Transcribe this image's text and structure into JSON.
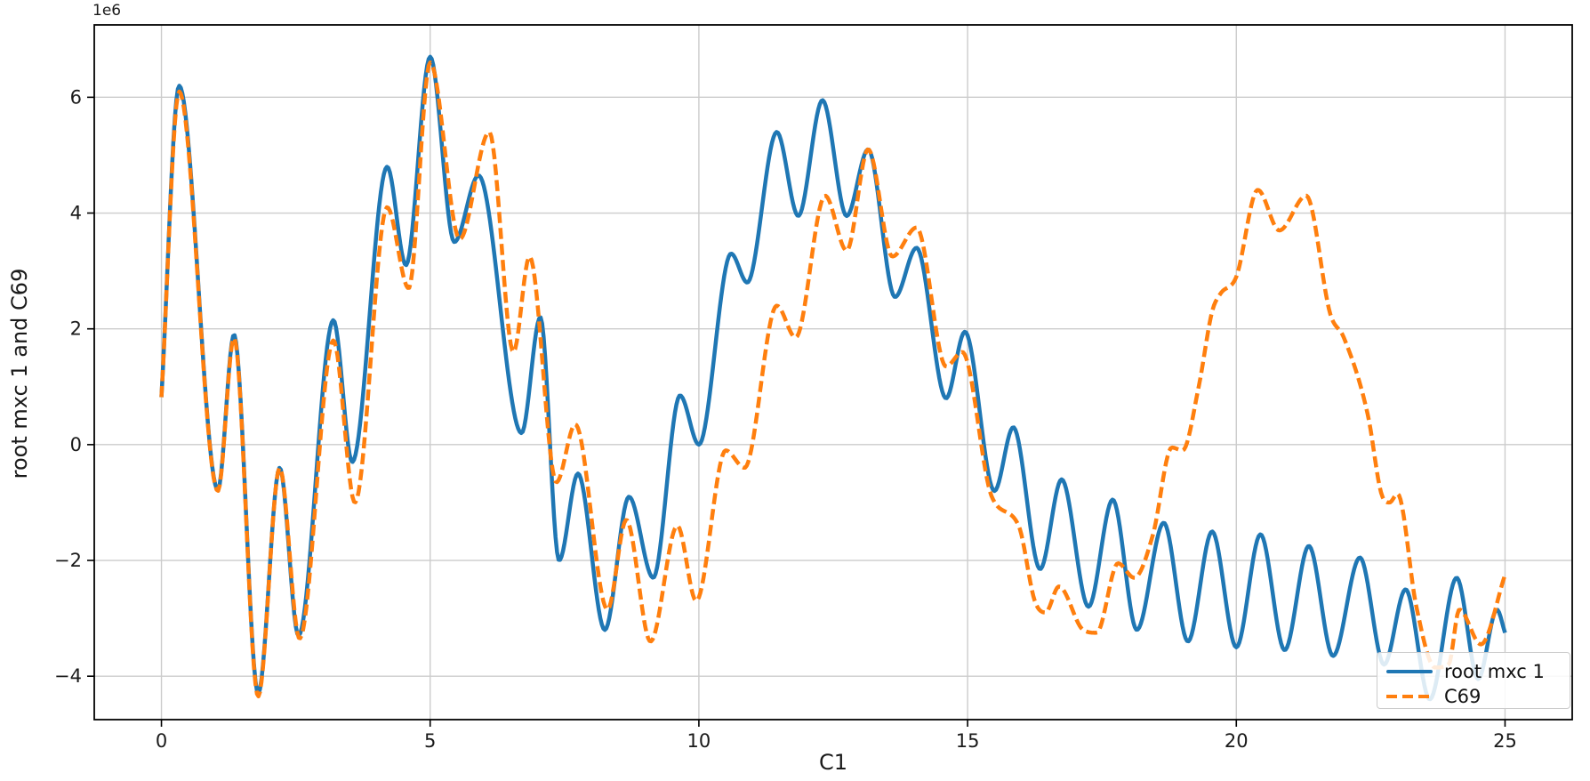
{
  "figure": {
    "background": "#ffffff",
    "xlabel": "C1",
    "ylabel": "root mxc 1 and C69",
    "offset_text": "1e6",
    "legend": {
      "entries": [
        {
          "label": "root mxc 1",
          "color": "#1f77b4",
          "style": "solid"
        },
        {
          "label": "C69",
          "color": "#ff7f0e",
          "style": "dashed"
        }
      ]
    }
  },
  "chart_data": {
    "type": "line",
    "title": "",
    "xlabel": "C1",
    "ylabel": "root mxc 1 and C69",
    "y_scale_factor": "1e6",
    "xlim": [
      -1.25,
      26.25
    ],
    "ylim": [
      -4.75,
      7.25
    ],
    "x_ticks": [
      0,
      5,
      10,
      15,
      20,
      25
    ],
    "x_tick_labels": [
      "0",
      "5",
      "10",
      "15",
      "20",
      "25"
    ],
    "y_ticks": [
      -4,
      -2,
      0,
      2,
      4,
      6
    ],
    "y_tick_labels": [
      "−4",
      "−2",
      "0",
      "2",
      "4",
      "6"
    ],
    "grid": true,
    "grid_color": "#cccccc",
    "axis_color": "#000000",
    "legend_position": "lower right",
    "series": [
      {
        "name": "root mxc 1",
        "color": "#1f77b4",
        "line_style": "solid",
        "line_width": 4.5,
        "points": [
          [
            0,
            0.82
          ],
          [
            0.33,
            6.2
          ],
          [
            1.05,
            -0.78
          ],
          [
            1.35,
            1.9
          ],
          [
            1.8,
            -4.3
          ],
          [
            2.2,
            -0.4
          ],
          [
            2.55,
            -3.3
          ],
          [
            3.2,
            2.15
          ],
          [
            3.55,
            -0.3
          ],
          [
            4.2,
            4.8
          ],
          [
            4.55,
            3.1
          ],
          [
            5.0,
            6.7
          ],
          [
            5.45,
            3.5
          ],
          [
            5.9,
            4.65
          ],
          [
            6.7,
            0.2
          ],
          [
            7.05,
            2.2
          ],
          [
            7.4,
            -2.0
          ],
          [
            7.75,
            -0.5
          ],
          [
            8.25,
            -3.2
          ],
          [
            8.7,
            -0.9
          ],
          [
            9.15,
            -2.3
          ],
          [
            9.65,
            0.85
          ],
          [
            10.0,
            0.0
          ],
          [
            10.6,
            3.3
          ],
          [
            10.9,
            2.8
          ],
          [
            11.45,
            5.4
          ],
          [
            11.85,
            3.95
          ],
          [
            12.3,
            5.95
          ],
          [
            12.75,
            3.95
          ],
          [
            13.15,
            5.1
          ],
          [
            13.65,
            2.55
          ],
          [
            14.05,
            3.4
          ],
          [
            14.6,
            0.8
          ],
          [
            14.95,
            1.95
          ],
          [
            15.5,
            -0.8
          ],
          [
            15.85,
            0.3
          ],
          [
            16.35,
            -2.15
          ],
          [
            16.75,
            -0.6
          ],
          [
            17.25,
            -2.8
          ],
          [
            17.7,
            -0.95
          ],
          [
            18.15,
            -3.2
          ],
          [
            18.65,
            -1.35
          ],
          [
            19.1,
            -3.4
          ],
          [
            19.55,
            -1.5
          ],
          [
            20.0,
            -3.5
          ],
          [
            20.45,
            -1.55
          ],
          [
            20.9,
            -3.55
          ],
          [
            21.35,
            -1.75
          ],
          [
            21.8,
            -3.65
          ],
          [
            22.3,
            -1.95
          ],
          [
            22.75,
            -3.8
          ],
          [
            23.15,
            -2.5
          ],
          [
            23.6,
            -4.4
          ],
          [
            24.1,
            -2.3
          ],
          [
            24.5,
            -4.05
          ],
          [
            24.85,
            -2.85
          ],
          [
            25,
            -3.25
          ]
        ]
      },
      {
        "name": "C69",
        "color": "#ff7f0e",
        "line_style": "dashed",
        "line_width": 4.5,
        "points": [
          [
            0,
            0.82
          ],
          [
            0.33,
            6.1
          ],
          [
            1.05,
            -0.8
          ],
          [
            1.35,
            1.85
          ],
          [
            1.8,
            -4.35
          ],
          [
            2.2,
            -0.4
          ],
          [
            2.57,
            -3.35
          ],
          [
            3.2,
            1.8
          ],
          [
            3.6,
            -1.0
          ],
          [
            4.2,
            4.1
          ],
          [
            4.6,
            2.7
          ],
          [
            5.0,
            6.6
          ],
          [
            5.55,
            3.55
          ],
          [
            6.1,
            5.4
          ],
          [
            6.55,
            1.6
          ],
          [
            6.85,
            3.25
          ],
          [
            7.35,
            -0.65
          ],
          [
            7.7,
            0.35
          ],
          [
            8.3,
            -2.85
          ],
          [
            8.65,
            -1.3
          ],
          [
            9.1,
            -3.4
          ],
          [
            9.6,
            -1.4
          ],
          [
            9.95,
            -2.7
          ],
          [
            10.5,
            -0.1
          ],
          [
            10.85,
            -0.4
          ],
          [
            11.45,
            2.4
          ],
          [
            11.8,
            1.85
          ],
          [
            12.35,
            4.3
          ],
          [
            12.75,
            3.35
          ],
          [
            13.15,
            5.1
          ],
          [
            13.6,
            3.25
          ],
          [
            14.05,
            3.75
          ],
          [
            14.6,
            1.35
          ],
          [
            14.9,
            1.6
          ],
          [
            15.45,
            -0.9
          ],
          [
            15.95,
            -1.4
          ],
          [
            16.25,
            -2.7
          ],
          [
            16.45,
            -2.9
          ],
          [
            16.7,
            -2.45
          ],
          [
            17.15,
            -3.2
          ],
          [
            17.4,
            -3.25
          ],
          [
            17.8,
            -2.05
          ],
          [
            18.1,
            -2.3
          ],
          [
            18.45,
            -1.55
          ],
          [
            18.8,
            -0.05
          ],
          [
            19.0,
            -0.1
          ],
          [
            19.3,
            1.0
          ],
          [
            19.55,
            2.3
          ],
          [
            19.7,
            2.6
          ],
          [
            20.0,
            2.9
          ],
          [
            20.4,
            4.4
          ],
          [
            20.8,
            3.7
          ],
          [
            21.3,
            4.3
          ],
          [
            21.75,
            2.25
          ],
          [
            22.0,
            1.85
          ],
          [
            22.45,
            0.5
          ],
          [
            22.7,
            -0.85
          ],
          [
            22.85,
            -1.0
          ],
          [
            23.0,
            -0.85
          ],
          [
            23.35,
            -2.8
          ],
          [
            23.7,
            -3.85
          ],
          [
            23.95,
            -3.8
          ],
          [
            24.15,
            -2.85
          ],
          [
            24.55,
            -3.45
          ],
          [
            25,
            -2.25
          ]
        ]
      }
    ]
  }
}
